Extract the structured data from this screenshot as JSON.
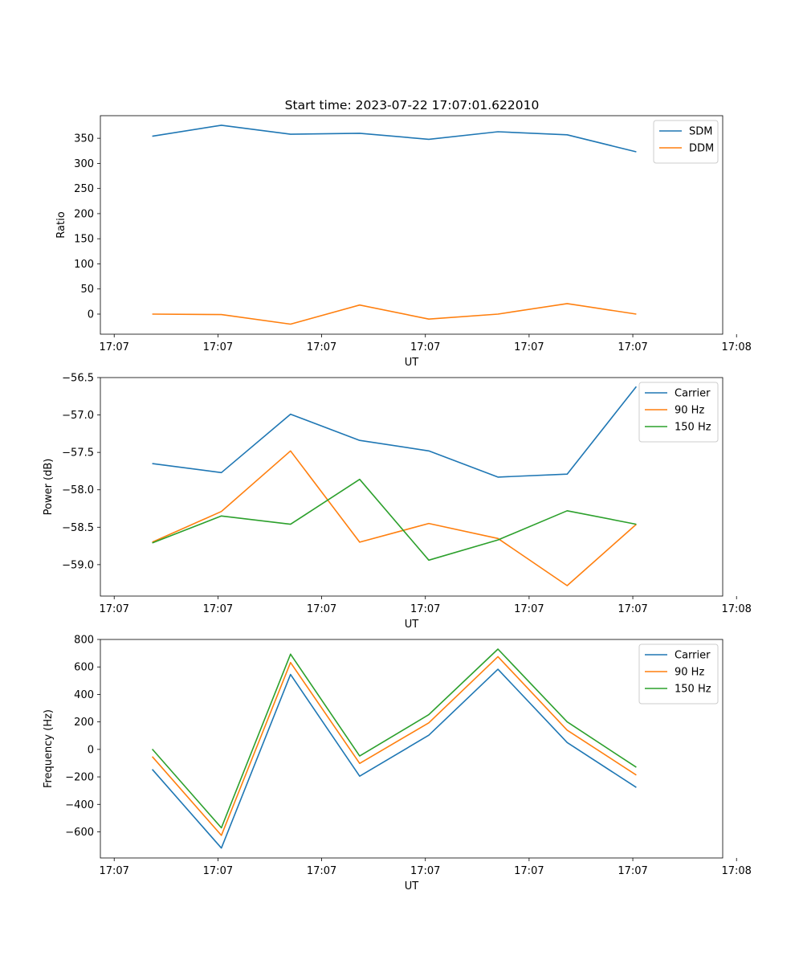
{
  "title": "Start time: 2023-07-22 17:07:01.622010",
  "chart_data": [
    {
      "type": "line",
      "id": "ratio",
      "ylabel": "Ratio",
      "xlabel": "UT",
      "xlim": [
        -0.2,
        8.8
      ],
      "x": [
        0.55,
        1.55,
        2.55,
        3.55,
        4.55,
        5.55,
        6.55,
        7.55
      ],
      "xticks": [
        0,
        1.5,
        3,
        4.5,
        6,
        7.5,
        9
      ],
      "xtick_labels": [
        "17:07",
        "17:07",
        "17:07",
        "17:07",
        "17:07",
        "17:07",
        "17:08"
      ],
      "ylim": [
        -40,
        395
      ],
      "yticks": [
        0,
        50,
        100,
        150,
        200,
        250,
        300,
        350
      ],
      "ytick_labels": [
        "0",
        "50",
        "100",
        "150",
        "200",
        "250",
        "300",
        "350"
      ],
      "legend": "top-right",
      "series": [
        {
          "name": "SDM",
          "color": "#1f77b4",
          "values": [
            354,
            376,
            358,
            360,
            348,
            363,
            357,
            323
          ]
        },
        {
          "name": "DDM",
          "color": "#ff7f0e",
          "values": [
            0,
            -1,
            -20,
            18,
            -10,
            0,
            21,
            0
          ]
        }
      ]
    },
    {
      "type": "line",
      "id": "power",
      "ylabel": "Power (dB)",
      "xlabel": "UT",
      "xlim": [
        -0.2,
        8.8
      ],
      "x": [
        0.55,
        1.55,
        2.55,
        3.55,
        4.55,
        5.55,
        6.55,
        7.55
      ],
      "xticks": [
        0,
        1.5,
        3,
        4.5,
        6,
        7.5,
        9
      ],
      "xtick_labels": [
        "17:07",
        "17:07",
        "17:07",
        "17:07",
        "17:07",
        "17:07",
        "17:08"
      ],
      "ylim": [
        -59.42,
        -56.5
      ],
      "yticks": [
        -59.0,
        -58.5,
        -58.0,
        -57.5,
        -57.0,
        -56.5
      ],
      "ytick_labels": [
        "−59.0",
        "−58.5",
        "−58.0",
        "−57.5",
        "−57.0",
        "−56.5"
      ],
      "legend": "top-right",
      "series": [
        {
          "name": "Carrier",
          "color": "#1f77b4",
          "values": [
            -57.65,
            -57.77,
            -56.99,
            -57.34,
            -57.48,
            -57.83,
            -57.79,
            -56.62
          ]
        },
        {
          "name": "90 Hz",
          "color": "#ff7f0e",
          "values": [
            -58.7,
            -58.29,
            -57.48,
            -58.7,
            -58.45,
            -58.65,
            -59.28,
            -58.46
          ]
        },
        {
          "name": "150 Hz",
          "color": "#2ca02c",
          "values": [
            -58.71,
            -58.35,
            -58.46,
            -57.86,
            -58.94,
            -58.67,
            -58.28,
            -58.46
          ]
        }
      ]
    },
    {
      "type": "line",
      "id": "frequency",
      "ylabel": "Frequency (Hz)",
      "xlabel": "UT",
      "xlim": [
        -0.2,
        8.8
      ],
      "x": [
        0.55,
        1.55,
        2.55,
        3.55,
        4.55,
        5.55,
        6.55,
        7.55
      ],
      "xticks": [
        0,
        1.5,
        3,
        4.5,
        6,
        7.5,
        9
      ],
      "xtick_labels": [
        "17:07",
        "17:07",
        "17:07",
        "17:07",
        "17:07",
        "17:07",
        "17:08"
      ],
      "ylim": [
        -790,
        800
      ],
      "yticks": [
        -600,
        -400,
        -200,
        0,
        200,
        400,
        600,
        800
      ],
      "ytick_labels": [
        "−600",
        "−400",
        "−200",
        "0",
        "200",
        "400",
        "600",
        "800"
      ],
      "legend": "top-right",
      "series": [
        {
          "name": "Carrier",
          "color": "#1f77b4",
          "values": [
            -145,
            -718,
            545,
            -195,
            103,
            583,
            50,
            -277
          ]
        },
        {
          "name": "90 Hz",
          "color": "#ff7f0e",
          "values": [
            -52,
            -626,
            632,
            -102,
            193,
            675,
            140,
            -187
          ]
        },
        {
          "name": "150 Hz",
          "color": "#2ca02c",
          "values": [
            2,
            -571,
            693,
            -48,
            253,
            730,
            200,
            -130
          ]
        }
      ]
    }
  ]
}
